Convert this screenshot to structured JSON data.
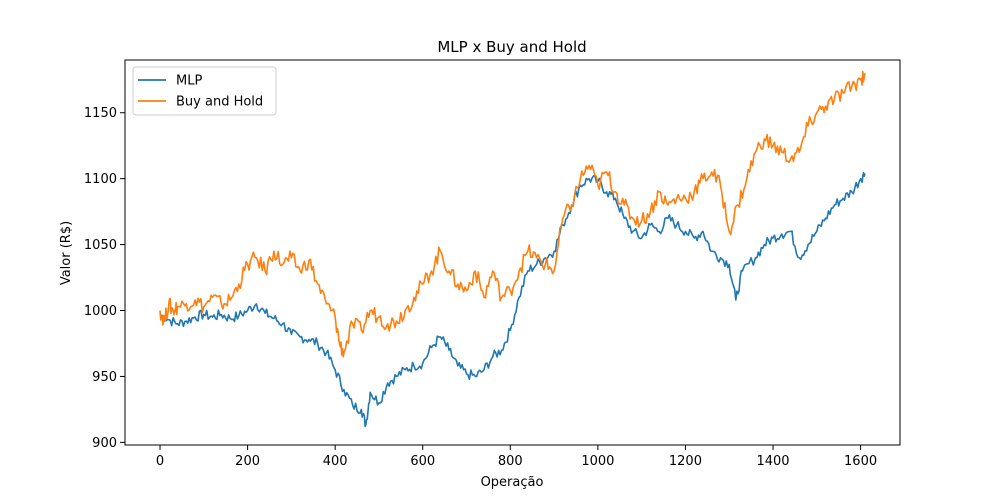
{
  "chart_data": {
    "type": "line",
    "title": "MLP x Buy and Hold",
    "xlabel": "Operação",
    "ylabel": "Valor (R$)",
    "xlim": [
      -80,
      1690
    ],
    "ylim": [
      898,
      1190
    ],
    "xticks": [
      0,
      200,
      400,
      600,
      800,
      1000,
      1200,
      1400,
      1600
    ],
    "yticks": [
      900,
      950,
      1000,
      1050,
      1100,
      1150
    ],
    "grid": false,
    "legend_position": "top-left",
    "series": [
      {
        "name": "MLP",
        "color": "#1f77b4",
        "x": [
          0,
          20,
          40,
          60,
          80,
          100,
          120,
          140,
          160,
          180,
          200,
          220,
          240,
          260,
          280,
          300,
          320,
          340,
          360,
          380,
          400,
          420,
          440,
          460,
          470,
          480,
          500,
          520,
          540,
          560,
          580,
          600,
          620,
          640,
          660,
          680,
          700,
          720,
          740,
          760,
          780,
          800,
          820,
          840,
          860,
          880,
          900,
          920,
          940,
          960,
          980,
          1000,
          1020,
          1040,
          1060,
          1080,
          1100,
          1120,
          1140,
          1160,
          1180,
          1200,
          1220,
          1240,
          1260,
          1280,
          1300,
          1315,
          1330,
          1360,
          1380,
          1400,
          1420,
          1440,
          1460,
          1480,
          1500,
          1520,
          1540,
          1560,
          1580,
          1600,
          1610
        ],
        "y": [
          997,
          993,
          990,
          992,
          995,
          997,
          995,
          997,
          994,
          996,
          1000,
          1005,
          998,
          994,
          990,
          982,
          980,
          978,
          975,
          968,
          955,
          940,
          928,
          925,
          913,
          938,
          930,
          945,
          950,
          955,
          958,
          960,
          972,
          980,
          970,
          958,
          952,
          950,
          955,
          965,
          970,
          985,
          1010,
          1030,
          1035,
          1040,
          1045,
          1065,
          1080,
          1095,
          1100,
          1098,
          1090,
          1085,
          1070,
          1060,
          1055,
          1065,
          1060,
          1070,
          1065,
          1060,
          1055,
          1060,
          1045,
          1040,
          1035,
          1008,
          1030,
          1040,
          1050,
          1055,
          1058,
          1060,
          1040,
          1050,
          1060,
          1070,
          1080,
          1085,
          1090,
          1100,
          1104
        ]
      },
      {
        "name": "Buy and Hold",
        "color": "#ff7f0e",
        "x": [
          0,
          10,
          20,
          30,
          40,
          60,
          80,
          100,
          120,
          140,
          160,
          180,
          200,
          220,
          240,
          260,
          280,
          300,
          320,
          340,
          360,
          380,
          400,
          410,
          420,
          440,
          460,
          480,
          500,
          520,
          540,
          560,
          580,
          600,
          620,
          640,
          660,
          680,
          700,
          720,
          740,
          760,
          780,
          800,
          820,
          840,
          860,
          880,
          900,
          920,
          940,
          960,
          980,
          1000,
          1020,
          1040,
          1060,
          1080,
          1100,
          1120,
          1140,
          1160,
          1180,
          1200,
          1220,
          1240,
          1260,
          1280,
          1300,
          1320,
          1340,
          1360,
          1380,
          1400,
          1420,
          1440,
          1460,
          1480,
          1500,
          1520,
          1540,
          1560,
          1580,
          1600,
          1610
        ],
        "y": [
          1000,
          992,
          1005,
          1000,
          1003,
          1005,
          1008,
          1003,
          1010,
          1005,
          1008,
          1020,
          1035,
          1040,
          1030,
          1045,
          1035,
          1040,
          1030,
          1038,
          1020,
          1005,
          995,
          975,
          968,
          990,
          985,
          1000,
          995,
          990,
          992,
          1000,
          1010,
          1020,
          1030,
          1045,
          1030,
          1020,
          1015,
          1030,
          1010,
          1030,
          1010,
          1015,
          1030,
          1045,
          1040,
          1035,
          1030,
          1070,
          1080,
          1100,
          1110,
          1095,
          1105,
          1090,
          1080,
          1070,
          1068,
          1075,
          1090,
          1080,
          1085,
          1085,
          1090,
          1100,
          1105,
          1095,
          1060,
          1080,
          1100,
          1120,
          1130,
          1125,
          1120,
          1115,
          1120,
          1140,
          1150,
          1155,
          1160,
          1165,
          1170,
          1175,
          1180
        ]
      }
    ]
  }
}
